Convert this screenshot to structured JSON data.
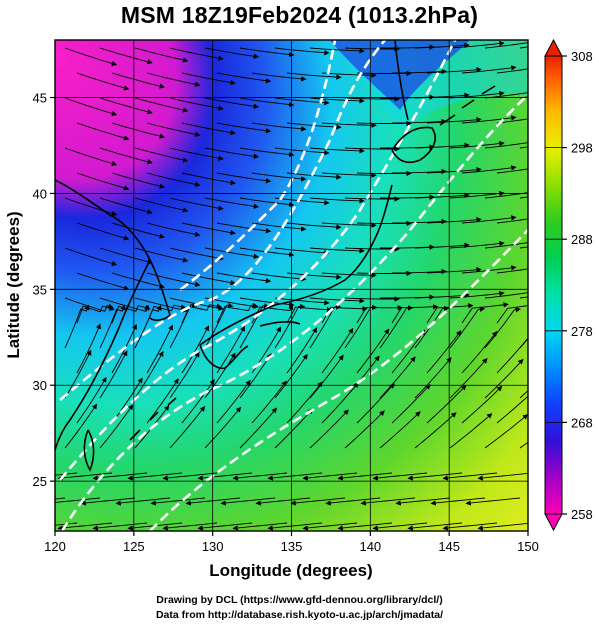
{
  "title": "MSM 18Z19Feb2024 (1013.2hPa)",
  "map": {
    "lon_range": [
      120,
      150
    ],
    "lat_range": [
      22.4,
      48
    ],
    "x_ticks": [
      120,
      125,
      130,
      135,
      140,
      145,
      150
    ],
    "y_ticks": [
      25,
      30,
      35,
      40,
      45
    ],
    "x_label": "Longitude (degrees)",
    "y_label": "Latitude  (degrees)",
    "grid": true,
    "field": "temperature",
    "overlay": [
      "streamlines",
      "white dashed isotherms",
      "coastlines"
    ]
  },
  "colorbar": {
    "ticks": [
      258,
      268,
      278,
      288,
      298,
      308
    ],
    "range": [
      258,
      308
    ],
    "colors": [
      "#ff00b4",
      "#6a11cc",
      "#1818e6",
      "#1060ff",
      "#00b4ff",
      "#00e0d0",
      "#00d070",
      "#40d020",
      "#a0e000",
      "#e8f000",
      "#ffb000",
      "#ff6000",
      "#e82000"
    ]
  },
  "credits": {
    "line1": "Drawing by DCL (https://www.gfd-dennou.org/library/dcl/)",
    "line2": "Data from http://database.rish.kyoto-u.ac.jp/arch/jmadata/"
  }
}
